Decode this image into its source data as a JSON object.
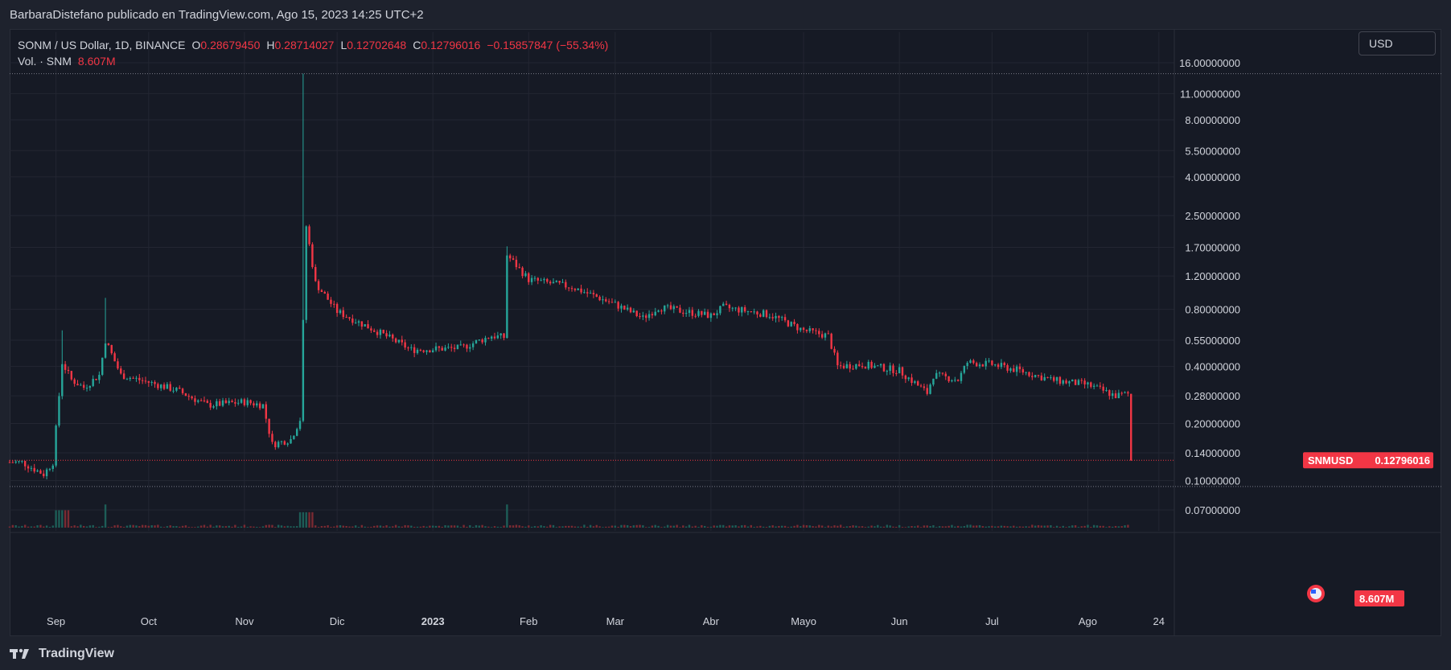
{
  "header": {
    "publisher_text": "BarbaraDistefano publicado en TradingView.com, Ago 15, 2023 14:25 UTC+2"
  },
  "legend": {
    "symbol": "SONM / US Dollar, 1D, BINANCE",
    "o_label": "O",
    "o_value": "0.28679450",
    "h_label": "H",
    "h_value": "0.28714027",
    "l_label": "L",
    "l_value": "0.12702648",
    "c_label": "C",
    "c_value": "0.12796016",
    "change": "−0.15857847 (−55.34%)",
    "vol_label": "Vol. · SNM",
    "vol_value": "8.607M"
  },
  "toolbar": {
    "currency_label": "USD"
  },
  "price_tag": {
    "symbol": "SNMUSD",
    "value": "0.12796016"
  },
  "volume_tag": {
    "value": "8.607M"
  },
  "footer": {
    "brand": "TradingView"
  },
  "colors": {
    "up": "#26a69a",
    "down": "#f23645",
    "background": "#161a25",
    "grid": "#232632",
    "axis_text": "#d1d4dc"
  },
  "chart_data": {
    "type": "candlestick",
    "scale": "log",
    "y_ticks": [
      16,
      11,
      8,
      5.5,
      4,
      2.5,
      1.7,
      1.2,
      0.8,
      0.55,
      0.4,
      0.28,
      0.2,
      0.14,
      0.1,
      0.07
    ],
    "y_tick_labels": [
      "16.00000000",
      "11.00000000",
      "8.00000000",
      "5.50000000",
      "4.00000000",
      "2.50000000",
      "1.70000000",
      "1.20000000",
      "0.80000000",
      "0.55000000",
      "0.40000000",
      "0.28000000",
      "0.20000000",
      "0.14000000",
      "0.10000000",
      "0.07000000"
    ],
    "x_labels": [
      {
        "label": "Sep",
        "date": "2022-09-01",
        "bold": false
      },
      {
        "label": "Oct",
        "date": "2022-10-01",
        "bold": false
      },
      {
        "label": "Nov",
        "date": "2022-11-01",
        "bold": false
      },
      {
        "label": "Dic",
        "date": "2022-12-01",
        "bold": false
      },
      {
        "label": "2023",
        "date": "2023-01-01",
        "bold": true
      },
      {
        "label": "Feb",
        "date": "2023-02-01",
        "bold": false
      },
      {
        "label": "Mar",
        "date": "2023-03-01",
        "bold": false
      },
      {
        "label": "Abr",
        "date": "2023-04-01",
        "bold": false
      },
      {
        "label": "Mayo",
        "date": "2023-05-01",
        "bold": false
      },
      {
        "label": "Jun",
        "date": "2023-06-01",
        "bold": false
      },
      {
        "label": "Jul",
        "date": "2023-07-01",
        "bold": false
      },
      {
        "label": "Ago",
        "date": "2023-08-01",
        "bold": false
      },
      {
        "label": "24",
        "date": "2023-08-24",
        "bold": false
      }
    ],
    "price_key_points": [
      {
        "date": "2022-08-21",
        "close": 0.125
      },
      {
        "date": "2022-08-28",
        "close": 0.108
      },
      {
        "date": "2022-08-31",
        "close": 0.125
      },
      {
        "date": "2022-09-03",
        "close": 0.42
      },
      {
        "date": "2022-09-06",
        "close": 0.34
      },
      {
        "date": "2022-09-10",
        "close": 0.31
      },
      {
        "date": "2022-09-15",
        "close": 0.36
      },
      {
        "date": "2022-09-17",
        "close": 0.55
      },
      {
        "date": "2022-09-22",
        "close": 0.36
      },
      {
        "date": "2022-10-01",
        "close": 0.33
      },
      {
        "date": "2022-10-10",
        "close": 0.3
      },
      {
        "date": "2022-10-20",
        "close": 0.25
      },
      {
        "date": "2022-11-01",
        "close": 0.26
      },
      {
        "date": "2022-11-07",
        "close": 0.25
      },
      {
        "date": "2022-11-10",
        "close": 0.155
      },
      {
        "date": "2022-11-16",
        "close": 0.165
      },
      {
        "date": "2022-11-19",
        "close": 0.21
      },
      {
        "date": "2022-11-21",
        "close": 2.2
      },
      {
        "date": "2022-11-24",
        "close": 1.1
      },
      {
        "date": "2022-12-01",
        "close": 0.78
      },
      {
        "date": "2022-12-15",
        "close": 0.6
      },
      {
        "date": "2022-12-25",
        "close": 0.49
      },
      {
        "date": "2023-01-10",
        "close": 0.5
      },
      {
        "date": "2023-01-20",
        "close": 0.58
      },
      {
        "date": "2023-01-24",
        "close": 0.57
      },
      {
        "date": "2023-01-25",
        "close": 1.55
      },
      {
        "date": "2023-02-01",
        "close": 1.15
      },
      {
        "date": "2023-02-15",
        "close": 1.05
      },
      {
        "date": "2023-03-01",
        "close": 0.85
      },
      {
        "date": "2023-03-10",
        "close": 0.72
      },
      {
        "date": "2023-03-15",
        "close": 0.82
      },
      {
        "date": "2023-04-01",
        "close": 0.74
      },
      {
        "date": "2023-04-05",
        "close": 0.82
      },
      {
        "date": "2023-04-20",
        "close": 0.75
      },
      {
        "date": "2023-05-01",
        "close": 0.62
      },
      {
        "date": "2023-05-09",
        "close": 0.58
      },
      {
        "date": "2023-05-12",
        "close": 0.4
      },
      {
        "date": "2023-05-20",
        "close": 0.41
      },
      {
        "date": "2023-06-01",
        "close": 0.38
      },
      {
        "date": "2023-06-10",
        "close": 0.29
      },
      {
        "date": "2023-06-12",
        "close": 0.36
      },
      {
        "date": "2023-06-20",
        "close": 0.34
      },
      {
        "date": "2023-06-23",
        "close": 0.42
      },
      {
        "date": "2023-07-01",
        "close": 0.41
      },
      {
        "date": "2023-07-10",
        "close": 0.38
      },
      {
        "date": "2023-07-20",
        "close": 0.34
      },
      {
        "date": "2023-08-01",
        "close": 0.32
      },
      {
        "date": "2023-08-10",
        "close": 0.28
      },
      {
        "date": "2023-08-14",
        "close": 0.2868
      },
      {
        "date": "2023-08-15",
        "close": 0.128
      }
    ],
    "last_candle": {
      "date": "2023-08-15",
      "open": 0.2868,
      "high": 0.2871,
      "low": 0.127,
      "close": 0.128
    },
    "spikes": [
      {
        "date": "2022-09-03",
        "high": 0.62
      },
      {
        "date": "2022-09-17",
        "high": 0.92
      },
      {
        "date": "2022-11-20",
        "high": 14.0
      },
      {
        "date": "2023-01-25",
        "high": 1.72
      }
    ],
    "volume_unit": "M"
  }
}
